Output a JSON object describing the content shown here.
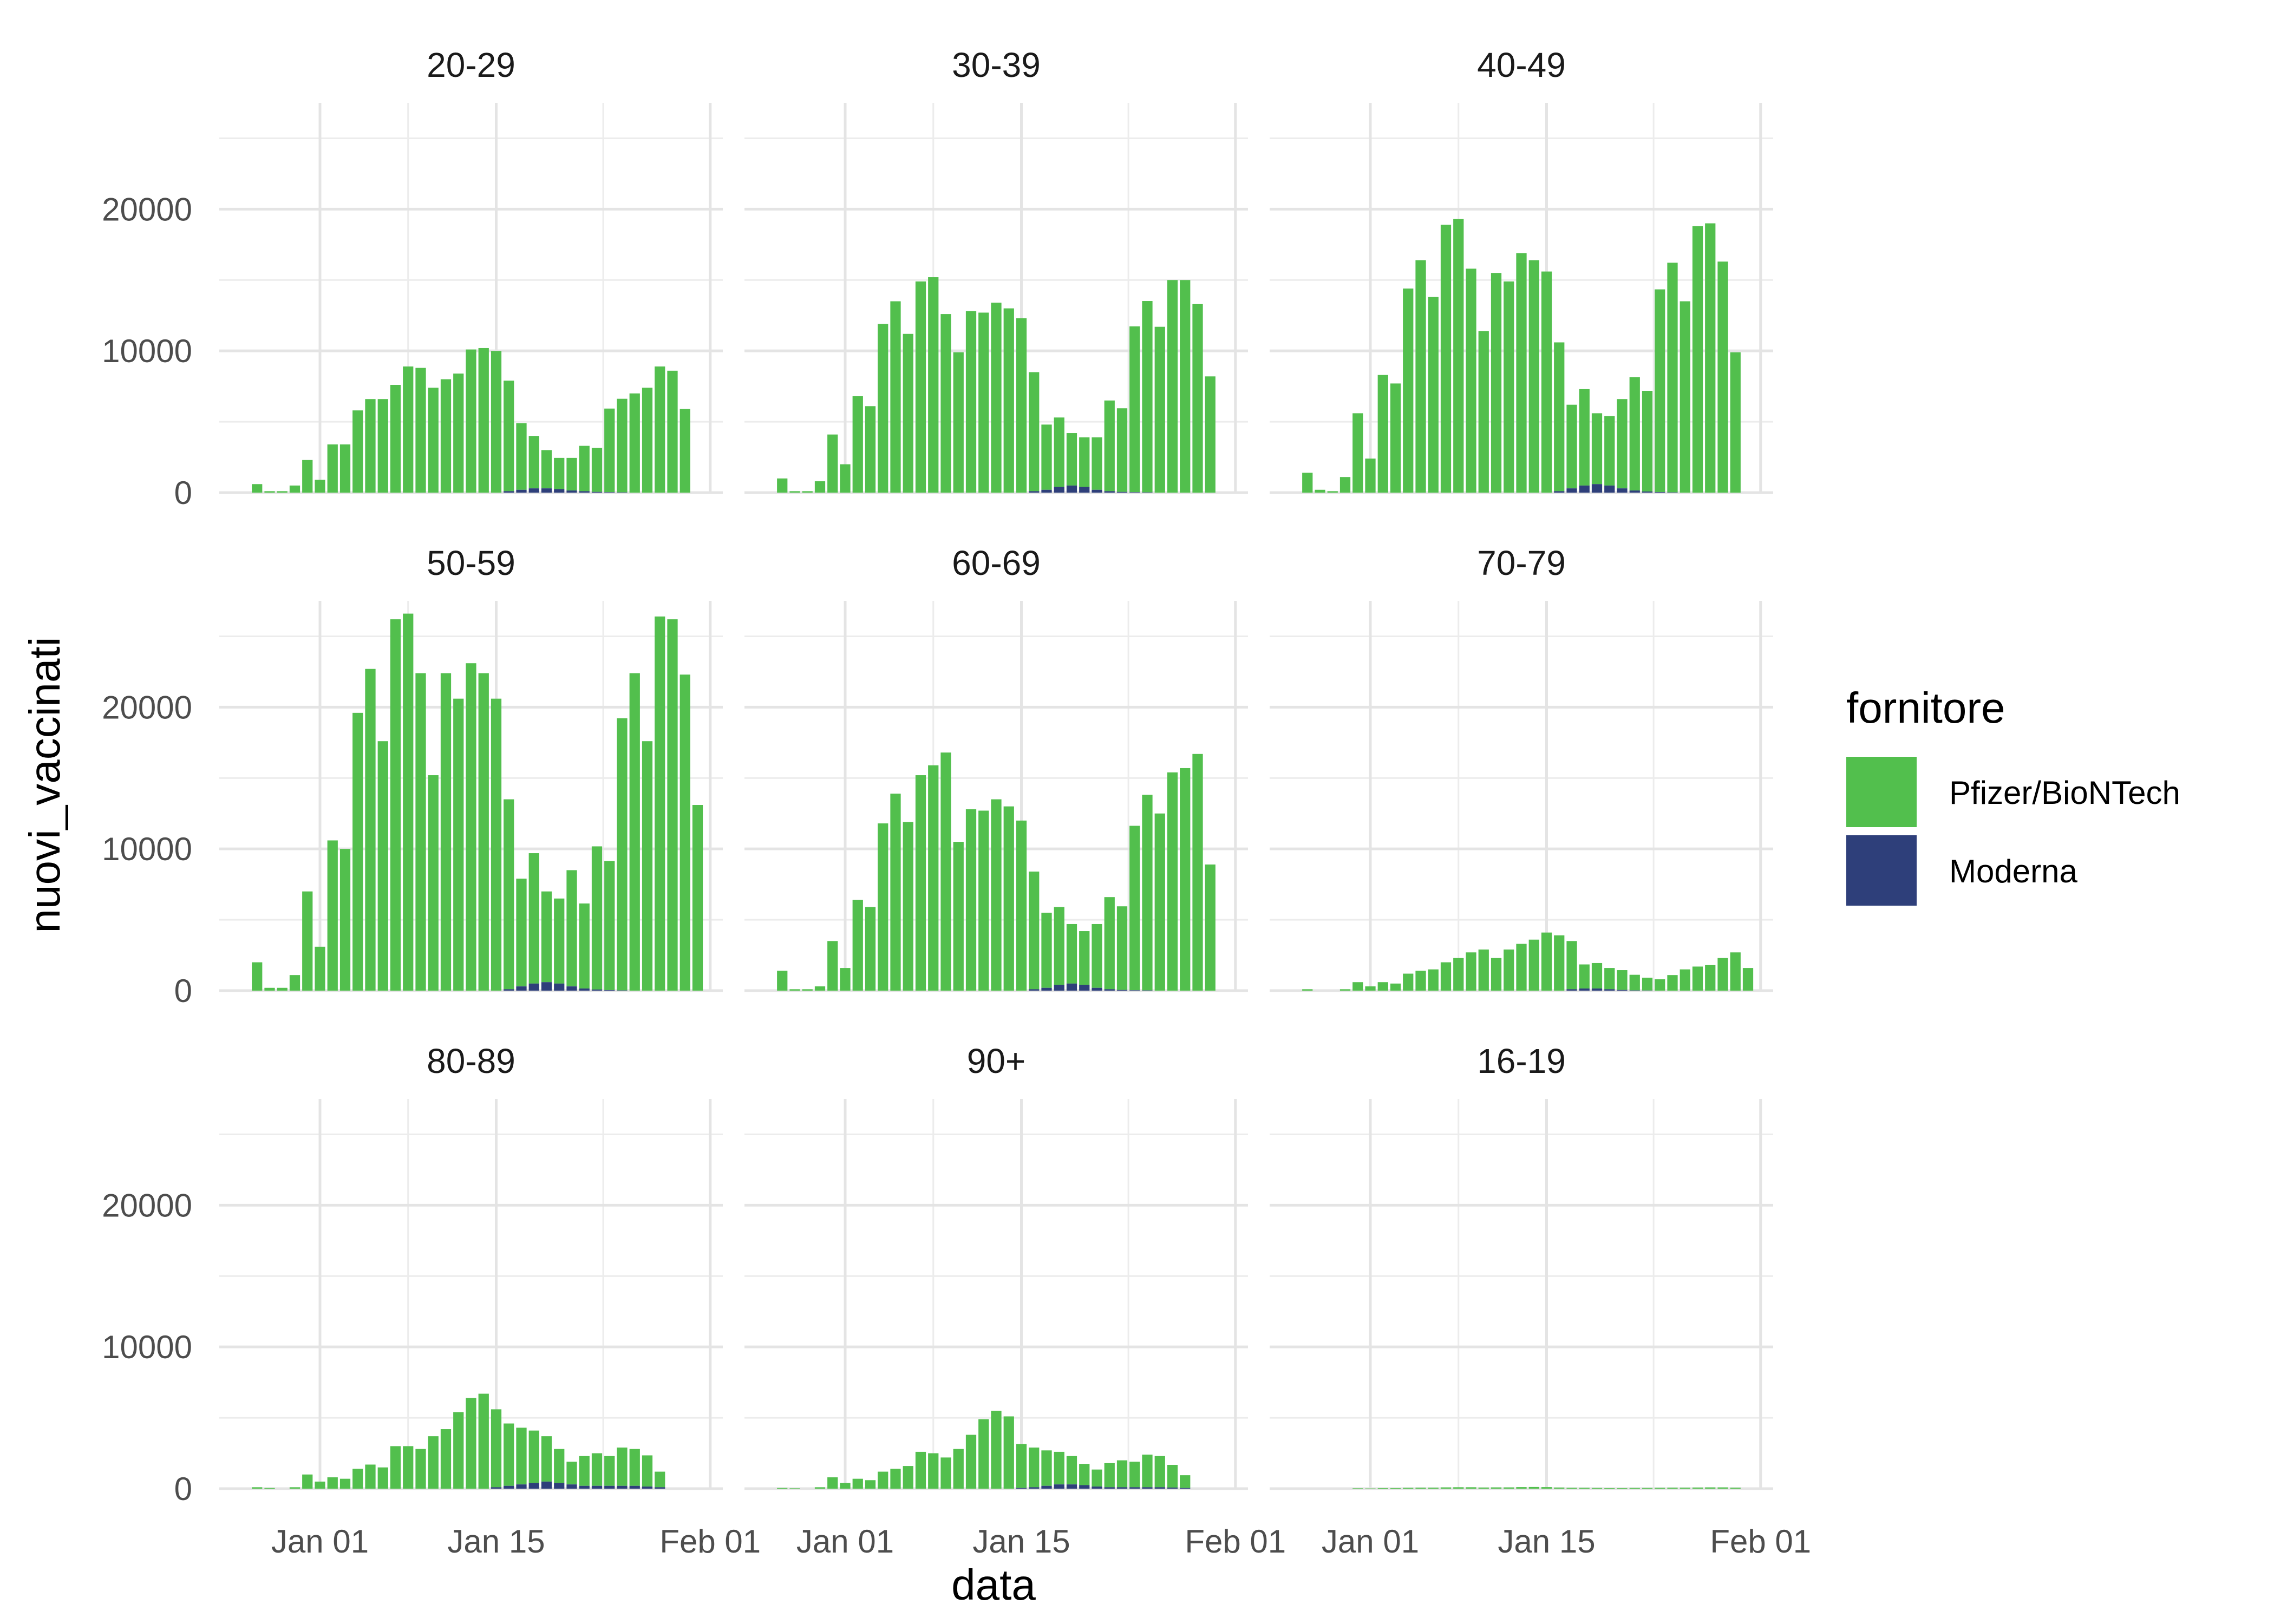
{
  "chart_data": {
    "type": "bar",
    "stacked": true,
    "xlabel": "data",
    "ylabel": "nuovi_vaccinati",
    "ylim": [
      0,
      27500
    ],
    "y_ticks": [
      0,
      10000,
      20000
    ],
    "y_tick_labels": [
      "0",
      "10000",
      "20000"
    ],
    "x_start_date": "2020-12-27",
    "x_range_dates": [
      "2020-12-24",
      "2021-02-02"
    ],
    "x_ticks_dates": [
      "2021-01-01",
      "2021-01-15",
      "2021-02-01"
    ],
    "x_tick_labels": [
      "Jan 01",
      "Jan 15",
      "Feb 01"
    ],
    "grid": true,
    "legend": {
      "title": "fornitore",
      "position": "right",
      "entries": [
        {
          "name": "Pfizer/BioNTech",
          "color": "#52BF4D"
        },
        {
          "name": "Moderna",
          "color": "#2E3F7A"
        }
      ]
    },
    "panels": [
      {
        "label": "20-29",
        "pfizer": [
          600,
          100,
          100,
          500,
          2300,
          900,
          3400,
          3400,
          5800,
          6600,
          6600,
          7600,
          8900,
          8800,
          7400,
          8000,
          8400,
          10100,
          10200,
          10000,
          7800,
          4700,
          3700,
          2700,
          2200,
          2300,
          3200,
          3100,
          5900,
          6600,
          7000,
          7400,
          8900,
          8600,
          5900
        ],
        "moderna": [
          0,
          0,
          0,
          0,
          0,
          0,
          0,
          0,
          0,
          0,
          0,
          0,
          0,
          0,
          0,
          0,
          0,
          0,
          0,
          0,
          100,
          200,
          300,
          300,
          250,
          150,
          100,
          50,
          30,
          20,
          0,
          0,
          0,
          0,
          0
        ]
      },
      {
        "label": "30-39",
        "pfizer": [
          1000,
          100,
          100,
          800,
          4100,
          2000,
          6800,
          6100,
          11900,
          13500,
          11200,
          14900,
          15200,
          12600,
          9900,
          12800,
          12700,
          13400,
          13000,
          12300,
          8400,
          4600,
          4900,
          3700,
          3500,
          3700,
          6400,
          5900,
          11700,
          13500,
          11700,
          15000,
          15000,
          13300,
          8200
        ],
        "moderna": [
          0,
          0,
          0,
          0,
          0,
          0,
          0,
          0,
          0,
          0,
          0,
          0,
          0,
          0,
          0,
          0,
          0,
          0,
          0,
          0,
          100,
          200,
          400,
          500,
          400,
          200,
          100,
          50,
          30,
          20,
          0,
          0,
          0,
          0,
          0
        ]
      },
      {
        "label": "40-49",
        "pfizer": [
          1400,
          200,
          100,
          1100,
          5600,
          2400,
          8300,
          7700,
          14400,
          16400,
          13800,
          18900,
          19300,
          15800,
          11400,
          15500,
          14900,
          16900,
          16400,
          15600,
          10500,
          5900,
          6800,
          5000,
          4900,
          6300,
          8000,
          7100,
          14300,
          16200,
          13500,
          18800,
          19000,
          16300,
          9900
        ],
        "moderna": [
          0,
          0,
          0,
          0,
          0,
          0,
          0,
          0,
          0,
          0,
          0,
          0,
          0,
          0,
          0,
          0,
          0,
          0,
          0,
          0,
          100,
          300,
          500,
          600,
          500,
          300,
          150,
          80,
          40,
          20,
          0,
          0,
          0,
          0,
          0
        ]
      },
      {
        "label": "50-59",
        "pfizer": [
          2000,
          200,
          200,
          1100,
          7000,
          3100,
          10600,
          10000,
          19600,
          22700,
          17600,
          26200,
          26600,
          22400,
          15200,
          22400,
          20600,
          23100,
          22400,
          20600,
          13400,
          7600,
          9200,
          6400,
          6000,
          8200,
          6000,
          10100,
          9100,
          19200,
          22400,
          17600,
          26400,
          26200,
          22300,
          13100
        ],
        "moderna": [
          0,
          0,
          0,
          0,
          0,
          0,
          0,
          0,
          0,
          0,
          0,
          0,
          0,
          0,
          0,
          0,
          0,
          0,
          0,
          0,
          100,
          300,
          500,
          600,
          500,
          300,
          150,
          80,
          40,
          20,
          0,
          0,
          0,
          0,
          0,
          0
        ]
      },
      {
        "label": "60-69",
        "pfizer": [
          1400,
          100,
          100,
          300,
          3500,
          1600,
          6400,
          5900,
          11800,
          13900,
          11900,
          15200,
          15900,
          16800,
          10500,
          12800,
          12700,
          13500,
          13000,
          12000,
          8300,
          5300,
          5500,
          4200,
          3800,
          4500,
          6500,
          5900,
          11600,
          13800,
          12500,
          15400,
          15700,
          16700,
          8900
        ],
        "moderna": [
          0,
          0,
          0,
          0,
          0,
          0,
          0,
          0,
          0,
          0,
          0,
          0,
          0,
          0,
          0,
          0,
          0,
          0,
          0,
          0,
          100,
          200,
          400,
          500,
          400,
          200,
          100,
          50,
          30,
          20,
          0,
          0,
          0,
          0,
          0
        ]
      },
      {
        "label": "70-79",
        "pfizer": [
          100,
          0,
          0,
          100,
          600,
          300,
          600,
          500,
          1200,
          1400,
          1500,
          2000,
          2300,
          2700,
          2900,
          2300,
          2900,
          3300,
          3600,
          4100,
          3900,
          3400,
          1700,
          1800,
          1500,
          1400,
          1100,
          900,
          800,
          1100,
          1500,
          1700,
          1800,
          2300,
          2700,
          1600
        ],
        "moderna": [
          0,
          0,
          0,
          0,
          0,
          0,
          0,
          0,
          0,
          0,
          0,
          0,
          0,
          0,
          0,
          0,
          0,
          0,
          0,
          0,
          0,
          100,
          150,
          150,
          100,
          50,
          20,
          10,
          0,
          0,
          0,
          0,
          0,
          0,
          0,
          0
        ]
      },
      {
        "label": "80-89",
        "pfizer": [
          100,
          50,
          0,
          100,
          1000,
          500,
          800,
          700,
          1400,
          1700,
          1500,
          3000,
          3000,
          2800,
          3700,
          4200,
          5400,
          6400,
          6700,
          5500,
          4400,
          4000,
          3700,
          3200,
          2400,
          1600,
          2100,
          2300,
          2100,
          2700,
          2600,
          2200,
          1100
        ],
        "moderna": [
          0,
          0,
          0,
          0,
          0,
          0,
          0,
          0,
          0,
          0,
          0,
          0,
          0,
          0,
          0,
          0,
          0,
          0,
          0,
          100,
          200,
          300,
          400,
          500,
          400,
          300,
          200,
          200,
          200,
          200,
          200,
          150,
          100
        ]
      },
      {
        "label": "90+",
        "pfizer": [
          50,
          30,
          0,
          100,
          800,
          400,
          700,
          600,
          1200,
          1400,
          1600,
          2600,
          2500,
          2200,
          2800,
          3800,
          4900,
          5500,
          5100,
          3100,
          2800,
          2500,
          2300,
          2000,
          1500,
          1200,
          1700,
          1900,
          1800,
          2300,
          2200,
          1600,
          900
        ],
        "moderna": [
          0,
          0,
          0,
          0,
          0,
          0,
          0,
          0,
          0,
          0,
          0,
          0,
          0,
          0,
          0,
          0,
          0,
          0,
          0,
          50,
          100,
          200,
          300,
          300,
          250,
          150,
          100,
          100,
          100,
          100,
          100,
          80,
          50
        ]
      },
      {
        "label": "16-19",
        "pfizer": [
          0,
          0,
          0,
          0,
          30,
          20,
          40,
          40,
          60,
          70,
          70,
          90,
          100,
          100,
          80,
          90,
          90,
          110,
          120,
          110,
          80,
          60,
          60,
          50,
          40,
          40,
          50,
          50,
          60,
          70,
          70,
          80,
          90,
          90,
          70
        ],
        "moderna": [
          0,
          0,
          0,
          0,
          0,
          0,
          0,
          0,
          0,
          0,
          0,
          0,
          0,
          0,
          0,
          0,
          0,
          0,
          0,
          0,
          0,
          0,
          0,
          0,
          0,
          0,
          0,
          0,
          0,
          0,
          0,
          0,
          0,
          0,
          0
        ]
      }
    ]
  }
}
